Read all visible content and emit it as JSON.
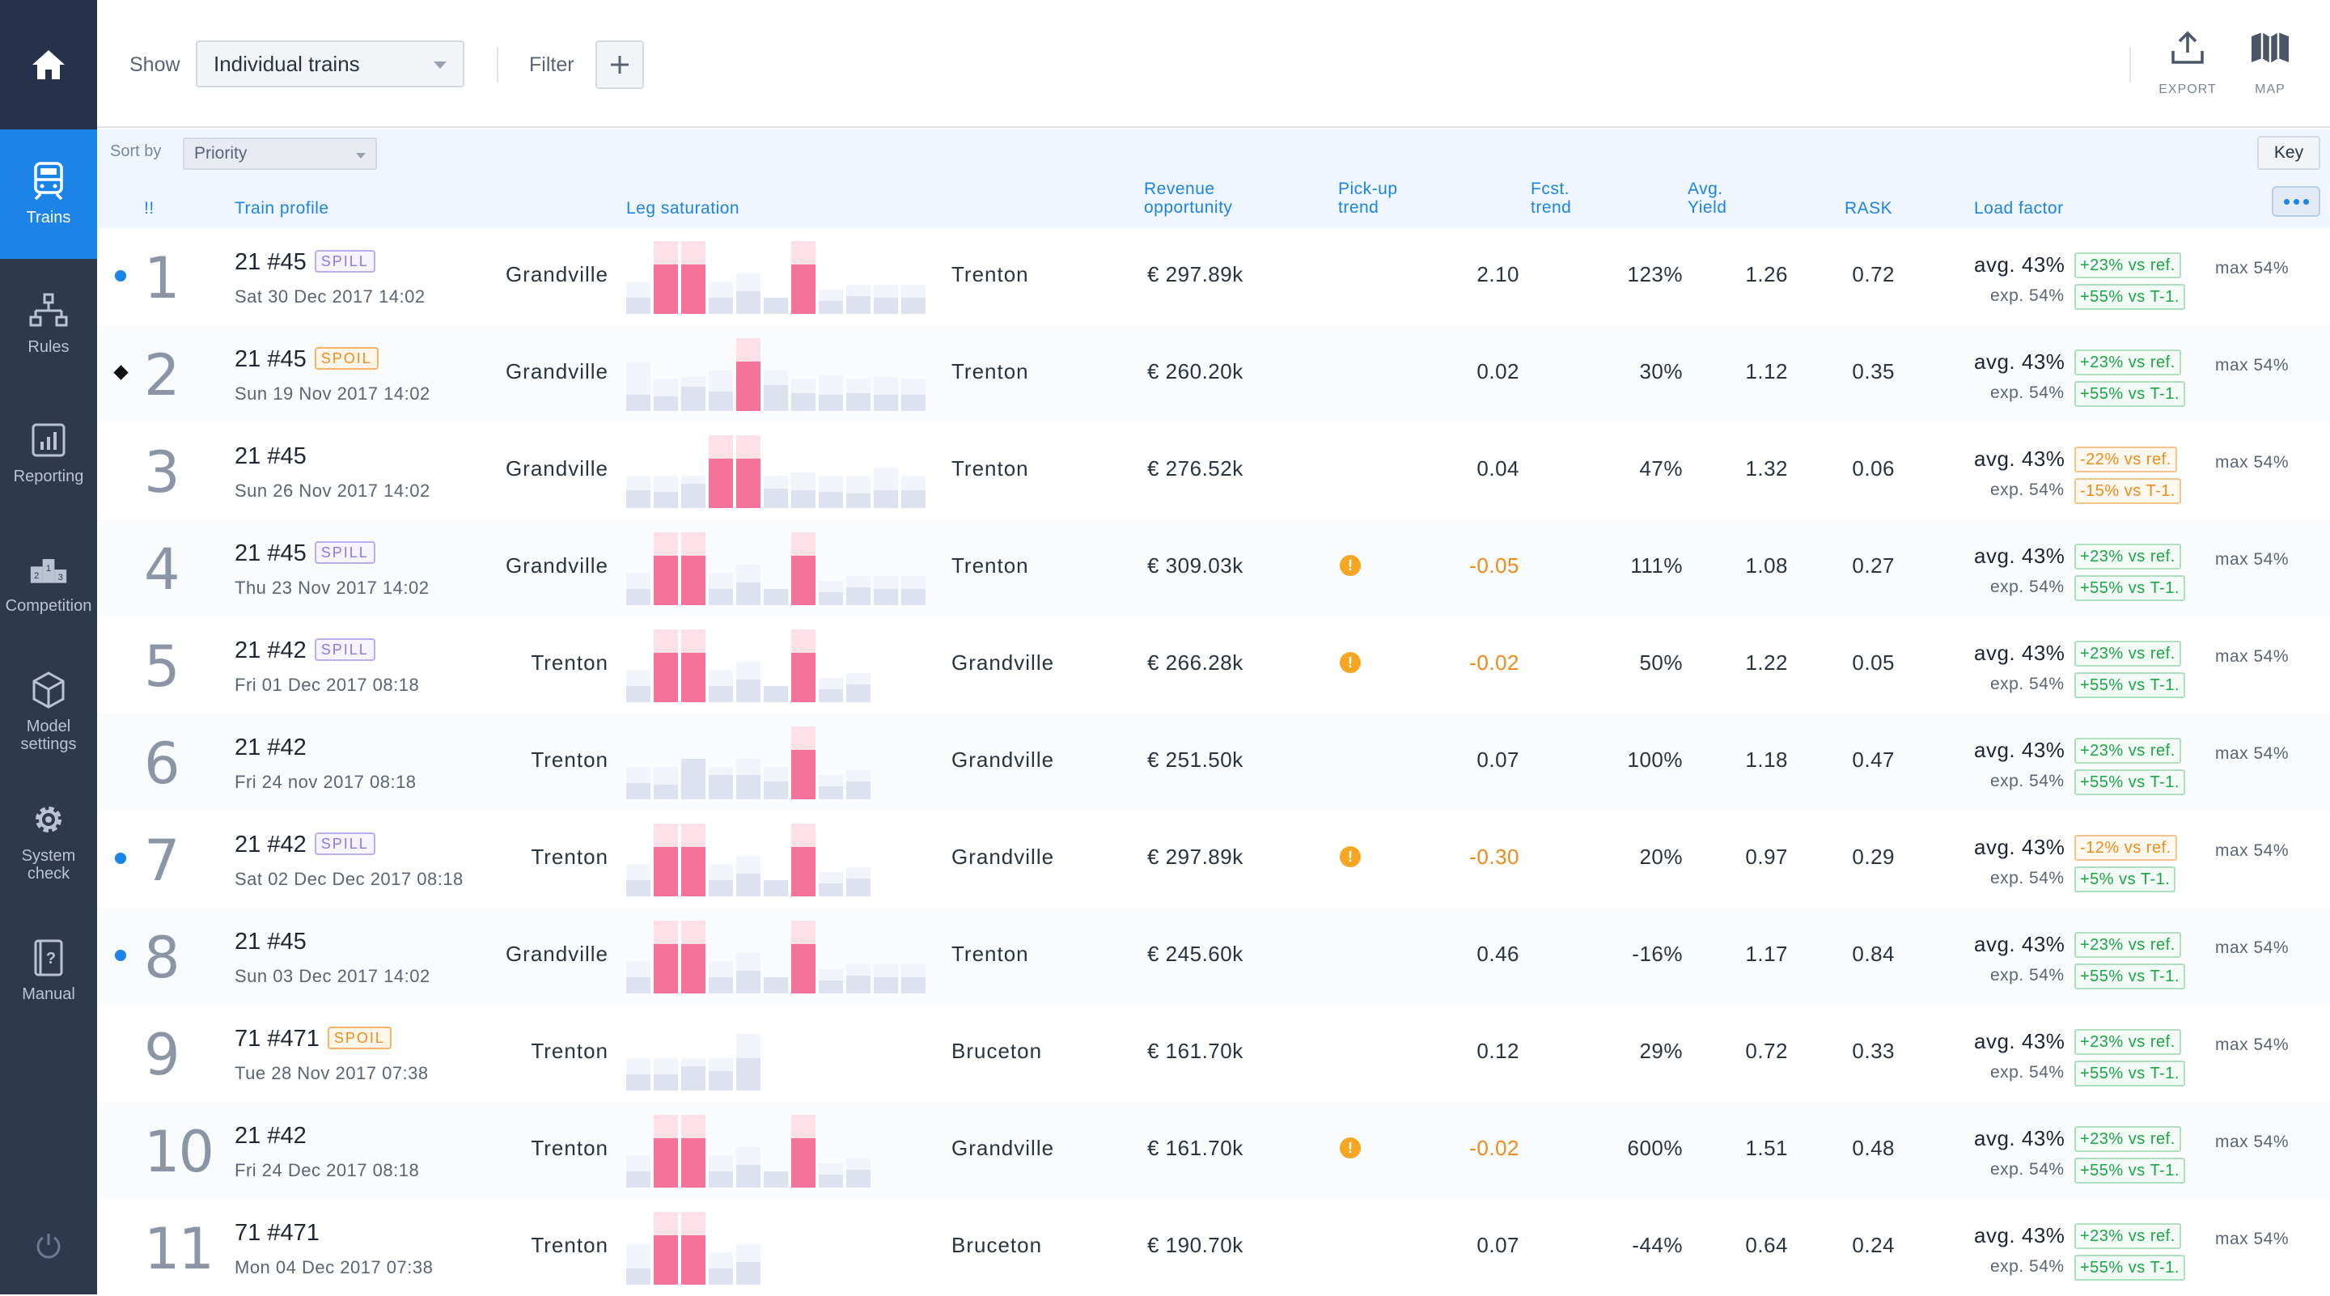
{
  "sidebar": {
    "items": [
      {
        "label": "Trains",
        "icon": "train-icon",
        "active": true
      },
      {
        "label": "Rules",
        "icon": "rules-tree-icon"
      },
      {
        "label": "Reporting",
        "icon": "bar-chart-icon"
      },
      {
        "label": "Competition",
        "icon": "podium-icon"
      },
      {
        "label": "Model settings",
        "icon": "cube-icon"
      },
      {
        "label": "System check",
        "icon": "gear-icon"
      },
      {
        "label": "Manual",
        "icon": "manual-book-icon"
      }
    ]
  },
  "toolbar": {
    "show_label": "Show",
    "show_value": "Individual trains",
    "filter_label": "Filter",
    "export_label": "EXPORT",
    "map_label": "MAP"
  },
  "sort": {
    "label": "Sort by",
    "value": "Priority",
    "key_label": "Key"
  },
  "columns": {
    "priority": "!!",
    "train_profile": "Train profile",
    "leg_saturation": "Leg saturation",
    "revenue": [
      "Revenue",
      "opportunity"
    ],
    "pickup": [
      "Pick-up",
      "trend"
    ],
    "fcst": [
      "Fcst.",
      "trend"
    ],
    "yield": [
      "Avg.",
      "Yield"
    ],
    "rask": "RASK",
    "load_factor": "Load factor"
  },
  "colors": {
    "accent": "#1b84e6",
    "sidebar": "#2d3a4e",
    "spill": "#8b7ae6",
    "spoil": "#ef8a1d",
    "good": "#1fa349",
    "bar_hot": "#f5739b",
    "bar_cool": "#dde1f0"
  },
  "rows": [
    {
      "rank": "1",
      "marker": "dot",
      "train": "21 #45",
      "badge": "SPILL",
      "date": "Sat 30 Dec 2017 14:02",
      "from": "Grandville",
      "to": "Trenton",
      "bars": "A",
      "revenue": "€ 297.89k",
      "pickup": "2.10",
      "warn": false,
      "fcst": "123%",
      "yield": "1.26",
      "rask": "0.72",
      "avg": "avg. 43%",
      "ref": "+23% vs ref.",
      "ref_bad": false,
      "exp": "exp. 54%",
      "t1": "+55% vs T-1.",
      "t1_bad": false,
      "max": "max 54%"
    },
    {
      "rank": "2",
      "marker": "diamond",
      "train": "21 #45",
      "badge": "SPOIL",
      "date": "Sun 19 Nov 2017 14:02",
      "from": "Grandville",
      "to": "Trenton",
      "bars": "B",
      "revenue": "€ 260.20k",
      "pickup": "0.02",
      "warn": false,
      "fcst": "30%",
      "yield": "1.12",
      "rask": "0.35",
      "avg": "avg. 43%",
      "ref": "+23% vs ref.",
      "ref_bad": false,
      "exp": "exp. 54%",
      "t1": "+55% vs T-1.",
      "t1_bad": false,
      "max": "max 54%"
    },
    {
      "rank": "3",
      "marker": "",
      "train": "21 #45",
      "badge": "",
      "date": "Sun 26 Nov 2017 14:02",
      "from": "Grandville",
      "to": "Trenton",
      "bars": "C",
      "revenue": "€ 276.52k",
      "pickup": "0.04",
      "warn": false,
      "fcst": "47%",
      "yield": "1.32",
      "rask": "0.06",
      "avg": "avg. 43%",
      "ref": "-22% vs ref.",
      "ref_bad": true,
      "exp": "exp. 54%",
      "t1": "-15% vs T-1.",
      "t1_bad": true,
      "max": "max 54%"
    },
    {
      "rank": "4",
      "marker": "",
      "train": "21 #45",
      "badge": "SPILL",
      "date": "Thu 23 Nov 2017 14:02",
      "from": "Grandville",
      "to": "Trenton",
      "bars": "A",
      "revenue": "€ 309.03k",
      "pickup": "-0.05",
      "warn": true,
      "fcst": "111%",
      "yield": "1.08",
      "rask": "0.27",
      "avg": "avg. 43%",
      "ref": "+23% vs ref.",
      "ref_bad": false,
      "exp": "exp. 54%",
      "t1": "+55% vs T-1.",
      "t1_bad": false,
      "max": "max 54%"
    },
    {
      "rank": "5",
      "marker": "",
      "train": "21 #42",
      "badge": "SPILL",
      "date": "Fri 01 Dec 2017 08:18",
      "from": "Trenton",
      "to": "Grandville",
      "bars": "D",
      "revenue": "€ 266.28k",
      "pickup": "-0.02",
      "warn": true,
      "fcst": "50%",
      "yield": "1.22",
      "rask": "0.05",
      "avg": "avg. 43%",
      "ref": "+23% vs ref.",
      "ref_bad": false,
      "exp": "exp. 54%",
      "t1": "+55% vs T-1.",
      "t1_bad": false,
      "max": "max 54%"
    },
    {
      "rank": "6",
      "marker": "",
      "train": "21 #42",
      "badge": "",
      "date": "Fri 24 nov 2017 08:18",
      "from": "Trenton",
      "to": "Grandville",
      "bars": "E",
      "revenue": "€ 251.50k",
      "pickup": "0.07",
      "warn": false,
      "fcst": "100%",
      "yield": "1.18",
      "rask": "0.47",
      "avg": "avg. 43%",
      "ref": "+23% vs ref.",
      "ref_bad": false,
      "exp": "exp. 54%",
      "t1": "+55% vs T-1.",
      "t1_bad": false,
      "max": "max 54%"
    },
    {
      "rank": "7",
      "marker": "dot",
      "train": "21 #42",
      "badge": "SPILL",
      "date": "Sat 02 Dec Dec 2017 08:18",
      "from": "Trenton",
      "to": "Grandville",
      "bars": "D",
      "revenue": "€ 297.89k",
      "pickup": "-0.30",
      "warn": true,
      "fcst": "20%",
      "yield": "0.97",
      "rask": "0.29",
      "avg": "avg. 43%",
      "ref": "-12% vs ref.",
      "ref_bad": true,
      "exp": "exp. 54%",
      "t1": "+5% vs T-1.",
      "t1_bad": false,
      "max": "max 54%"
    },
    {
      "rank": "8",
      "marker": "dot",
      "train": "21 #45",
      "badge": "",
      "date": "Sun 03 Dec 2017 14:02",
      "from": "Grandville",
      "to": "Trenton",
      "bars": "A",
      "revenue": "€ 245.60k",
      "pickup": "0.46",
      "warn": false,
      "fcst": "-16%",
      "yield": "1.17",
      "rask": "0.84",
      "avg": "avg. 43%",
      "ref": "+23% vs ref.",
      "ref_bad": false,
      "exp": "exp. 54%",
      "t1": "+55% vs T-1.",
      "t1_bad": false,
      "max": "max 54%"
    },
    {
      "rank": "9",
      "marker": "",
      "train": "71 #471",
      "badge": "SPOIL",
      "date": "Tue 28 Nov 2017 07:38",
      "from": "Trenton",
      "to": "Bruceton",
      "bars": "F",
      "revenue": "€ 161.70k",
      "pickup": "0.12",
      "warn": false,
      "fcst": "29%",
      "yield": "0.72",
      "rask": "0.33",
      "avg": "avg. 43%",
      "ref": "+23% vs ref.",
      "ref_bad": false,
      "exp": "exp. 54%",
      "t1": "+55% vs T-1.",
      "t1_bad": false,
      "max": "max 54%"
    },
    {
      "rank": "10",
      "marker": "",
      "train": "21 #42",
      "badge": "",
      "date": "Fri 24 Dec 2017 08:18",
      "from": "Trenton",
      "to": "Grandville",
      "bars": "D",
      "revenue": "€ 161.70k",
      "pickup": "-0.02",
      "warn": true,
      "fcst": "600%",
      "yield": "1.51",
      "rask": "0.48",
      "avg": "avg. 43%",
      "ref": "+23% vs ref.",
      "ref_bad": false,
      "exp": "exp. 54%",
      "t1": "+55% vs T-1.",
      "t1_bad": false,
      "max": "max 54%"
    },
    {
      "rank": "11",
      "marker": "",
      "train": "71 #471",
      "badge": "",
      "date": "Mon 04 Dec 2017 07:38",
      "from": "Trenton",
      "to": "Bruceton",
      "bars": "G",
      "revenue": "€ 190.70k",
      "pickup": "0.07",
      "warn": false,
      "fcst": "-44%",
      "yield": "0.64",
      "rask": "0.24",
      "avg": "avg. 43%",
      "ref": "+23% vs ref.",
      "ref_bad": false,
      "exp": "exp. 54%",
      "t1": "+55% vs T-1.",
      "t1_bad": false,
      "max": "max 54%"
    }
  ]
}
